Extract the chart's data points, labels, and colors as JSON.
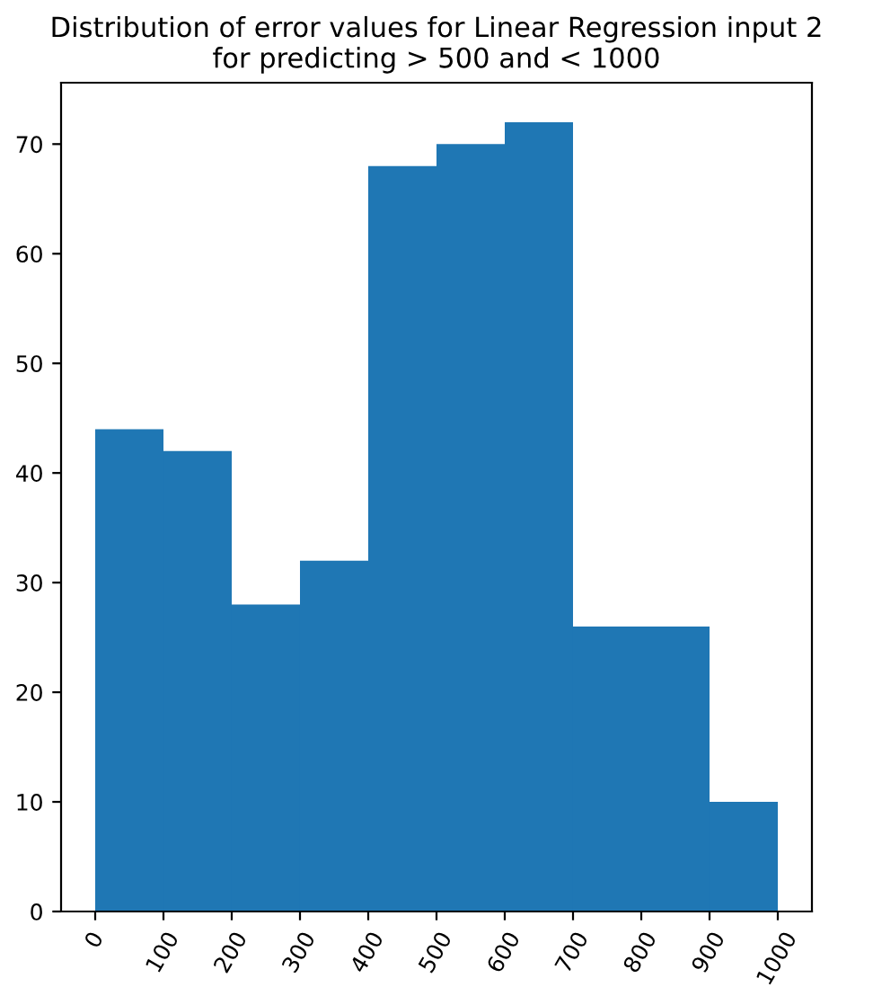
{
  "chart_data": {
    "type": "histogram",
    "title": "Distribution of error values for Linear Regression input 2\nfor predicting > 500 and < 1000",
    "bins": [
      0,
      100,
      200,
      300,
      400,
      500,
      600,
      700,
      800,
      900,
      1000
    ],
    "values": [
      44,
      42,
      28,
      32,
      68,
      70,
      72,
      26,
      26,
      10
    ],
    "color": "#1f77b4",
    "xlim": [
      -50,
      1050
    ],
    "ylim": [
      0,
      75.6
    ],
    "xticks": [
      0,
      100,
      200,
      300,
      400,
      500,
      600,
      700,
      800,
      900,
      1000
    ],
    "yticks": [
      0,
      10,
      20,
      30,
      40,
      50,
      60,
      70
    ],
    "grid": false
  }
}
